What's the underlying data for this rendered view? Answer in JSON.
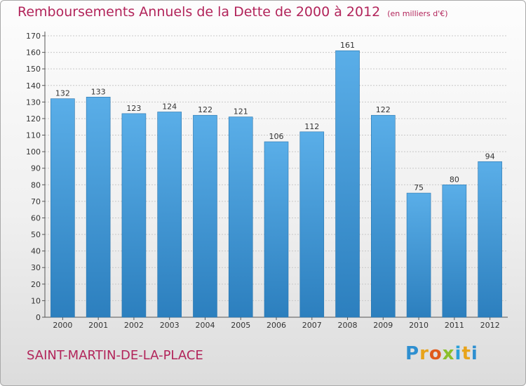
{
  "header": {
    "title": "Remboursements Annuels de la Dette de 2000 à 2012",
    "unit": "(en milliers d'€)"
  },
  "footer": {
    "commune": "SAINT-MARTIN-DE-LA-PLACE",
    "logo_letters": [
      "P",
      "r",
      "o",
      "x",
      "i",
      "t",
      "i"
    ]
  },
  "colors": {
    "title": "#b2245a",
    "bar_top": "#5aaee8",
    "bar_bottom": "#2c7fbe",
    "grid": "#c8c8c8"
  },
  "chart_data": {
    "type": "bar",
    "title": "Remboursements Annuels de la Dette de 2000 à 2012",
    "xlabel": "",
    "ylabel": "",
    "categories": [
      "2000",
      "2001",
      "2002",
      "2003",
      "2004",
      "2005",
      "2006",
      "2007",
      "2008",
      "2009",
      "2010",
      "2011",
      "2012"
    ],
    "values": [
      132,
      133,
      123,
      124,
      122,
      121,
      106,
      112,
      161,
      122,
      75,
      80,
      94
    ],
    "ylim": [
      0,
      170
    ],
    "ytick_step": 10,
    "grid": true,
    "data_labels": true,
    "legend": "none"
  }
}
